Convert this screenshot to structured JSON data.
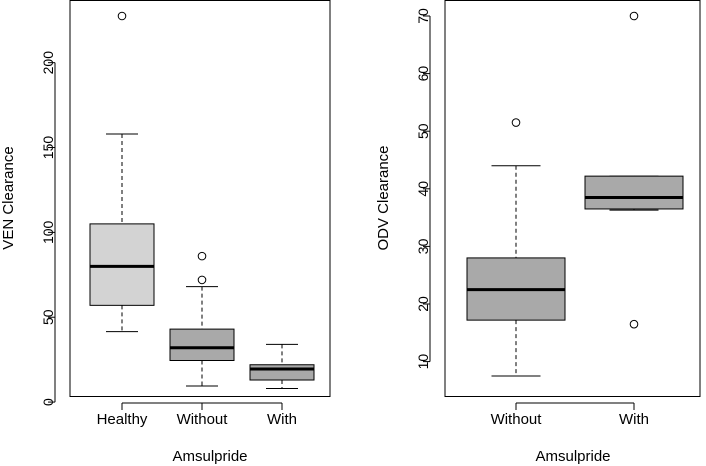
{
  "chart_data": [
    {
      "type": "boxplot",
      "xlabel": "Amsulpride",
      "ylabel": "VEN Clearance",
      "ylim": [
        0,
        234
      ],
      "yticks": [
        0,
        50,
        100,
        150,
        200
      ],
      "categories": [
        "Healthy",
        "Without",
        "With"
      ],
      "boxes": [
        {
          "label": "Healthy",
          "whisker_low": 41.5,
          "q1": 57,
          "median": 80,
          "q3": 105,
          "whisker_high": 158,
          "outliers": [
            227.5
          ],
          "fill": "#d3d3d3"
        },
        {
          "label": "Without",
          "whisker_low": 9.5,
          "q1": 24.5,
          "median": 32,
          "q3": 43,
          "whisker_high": 68,
          "outliers": [
            72,
            86
          ],
          "fill": "#a9a9a9"
        },
        {
          "label": "With",
          "whisker_low": 8,
          "q1": 13,
          "median": 19.5,
          "q3": 22,
          "whisker_high": 34,
          "outliers": [],
          "fill": "#a9a9a9"
        }
      ]
    },
    {
      "type": "boxplot",
      "xlabel": "Amsulpride",
      "ylabel": "ODV Clearance",
      "ylim": [
        5,
        71
      ],
      "yticks": [
        10,
        20,
        30,
        40,
        50,
        60,
        70
      ],
      "categories": [
        "Without",
        "With"
      ],
      "boxes": [
        {
          "label": "Without",
          "whisker_low": 7.5,
          "q1": 17.2,
          "median": 22.5,
          "q3": 28,
          "whisker_high": 44,
          "outliers": [
            51.5
          ],
          "fill": "#a9a9a9"
        },
        {
          "label": "With",
          "whisker_low": 36.3,
          "q1": 36.5,
          "median": 38.5,
          "q3": 42.2,
          "whisker_high": 42.2,
          "outliers": [
            16.5,
            70
          ],
          "fill": "#a9a9a9"
        }
      ]
    }
  ]
}
